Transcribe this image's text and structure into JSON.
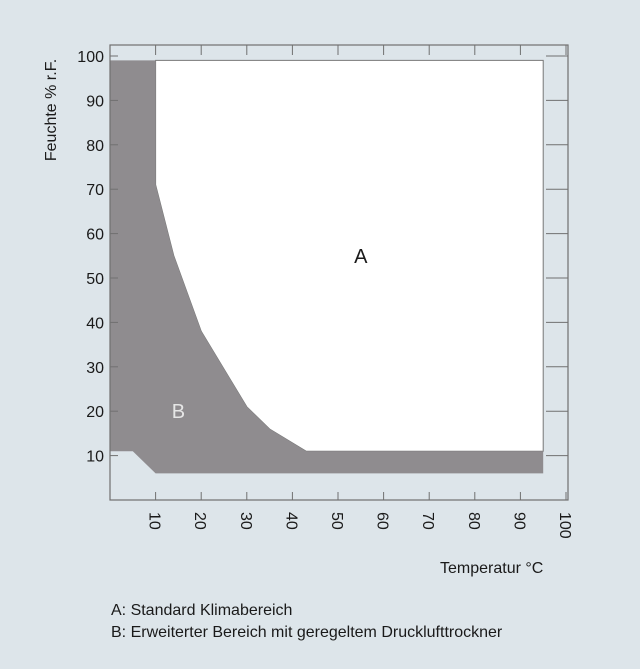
{
  "chart_data": {
    "type": "area",
    "xlabel": "Temperatur °C",
    "ylabel": "Feuchte % r.F.",
    "xlim": [
      0,
      100
    ],
    "ylim": [
      0,
      100
    ],
    "x_ticks": [
      "10",
      "20",
      "30",
      "40",
      "50",
      "60",
      "70",
      "80",
      "90",
      "100"
    ],
    "y_ticks": [
      "10",
      "20",
      "30",
      "40",
      "50",
      "60",
      "70",
      "80",
      "90",
      "100"
    ],
    "grid": false,
    "regions": [
      {
        "name": "B",
        "color": "#8f8c8f",
        "points": [
          [
            0,
            99
          ],
          [
            10,
            99
          ],
          [
            10,
            71
          ],
          [
            14,
            55
          ],
          [
            20,
            38
          ],
          [
            30,
            21
          ],
          [
            35,
            16
          ],
          [
            43,
            11
          ],
          [
            95,
            11
          ],
          [
            95,
            6
          ],
          [
            10,
            6
          ],
          [
            5,
            11
          ],
          [
            0,
            11
          ]
        ]
      },
      {
        "name": "A",
        "color": "#ffffff",
        "points": [
          [
            10,
            99
          ],
          [
            95,
            99
          ],
          [
            95,
            11
          ],
          [
            43,
            11
          ],
          [
            35,
            16
          ],
          [
            30,
            21
          ],
          [
            20,
            38
          ],
          [
            14,
            55
          ],
          [
            10,
            71
          ]
        ]
      }
    ],
    "annotations": [
      {
        "text": "A",
        "x": 55,
        "y": 55
      },
      {
        "text": "B",
        "x": 15,
        "y": 20
      }
    ]
  },
  "legend": {
    "a": "A: Standard Klimabereich",
    "b": "B: Erweiterter Bereich mit geregeltem Drucklufttrockner"
  },
  "colors": {
    "background": "#dde5ea",
    "region_b": "#8f8c8f",
    "region_a": "#ffffff",
    "axis": "#707070"
  }
}
